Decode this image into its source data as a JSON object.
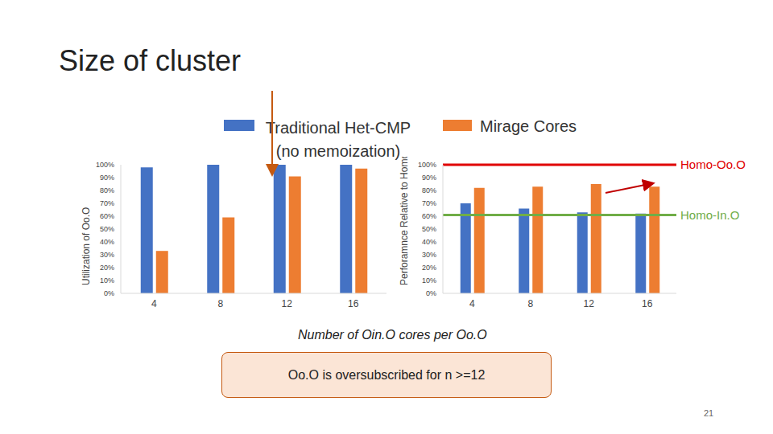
{
  "title": "Size of cluster",
  "xlabel": "Number of Oin.O cores per Oo.O",
  "annotations": [
    "Oo.O is oversubscribed for n >=12"
  ],
  "page": 21,
  "chart_data": [
    {
      "type": "bar",
      "ylabel": "Utilization of Oo.O",
      "categories": [
        4,
        8,
        12,
        16
      ],
      "series": [
        {
          "name": "Traditional Het-CMP (no memoization)",
          "color": "#4472c4",
          "values": [
            98,
            100,
            100,
            100
          ]
        },
        {
          "name": "Mirage Cores",
          "color": "#ed7d31",
          "values": [
            33,
            59,
            91,
            97
          ]
        }
      ],
      "ylim": [
        0,
        100
      ],
      "yticks": [
        {
          "value": 0,
          "label": "0%"
        },
        {
          "value": 10,
          "label": "10%"
        },
        {
          "value": 20,
          "label": "20%"
        },
        {
          "value": 30,
          "label": "30%"
        },
        {
          "value": 40,
          "label": "40%"
        },
        {
          "value": 50,
          "label": "50%"
        },
        {
          "value": 60,
          "label": "60%"
        },
        {
          "value": 70,
          "label": "70%"
        },
        {
          "value": 80,
          "label": "80%"
        },
        {
          "value": 90,
          "label": "90%"
        },
        {
          "value": 100,
          "label": "100%"
        }
      ]
    },
    {
      "type": "bar",
      "ylabel": "Perforamnce Relative to Homo-Oo.O",
      "categories": [
        4,
        8,
        12,
        16
      ],
      "series": [
        {
          "name": "Traditional Het-CMP (no memoization)",
          "color": "#4472c4",
          "values": [
            70,
            66,
            63,
            62
          ]
        },
        {
          "name": "Mirage Cores",
          "color": "#ed7d31",
          "values": [
            82,
            83,
            85,
            83
          ]
        }
      ],
      "reference_lines": [
        {
          "label": "Homo-Oo.O",
          "value": 100,
          "color": "#e00000"
        },
        {
          "label": "Homo-In.O",
          "value": 61,
          "color": "#70ad47"
        }
      ],
      "ylim": [
        0,
        100
      ],
      "yticks": [
        {
          "value": 0,
          "label": "0%"
        },
        {
          "value": 10,
          "label": "10%"
        },
        {
          "value": 20,
          "label": "20%"
        },
        {
          "value": 30,
          "label": "30%"
        },
        {
          "value": 40,
          "label": "40%"
        },
        {
          "value": 50,
          "label": "50%"
        },
        {
          "value": 60,
          "label": "60%"
        },
        {
          "value": 70,
          "label": "70%"
        },
        {
          "value": 80,
          "label": "80%"
        },
        {
          "value": 90,
          "label": "90%"
        },
        {
          "value": 100,
          "label": "100%"
        }
      ]
    }
  ]
}
